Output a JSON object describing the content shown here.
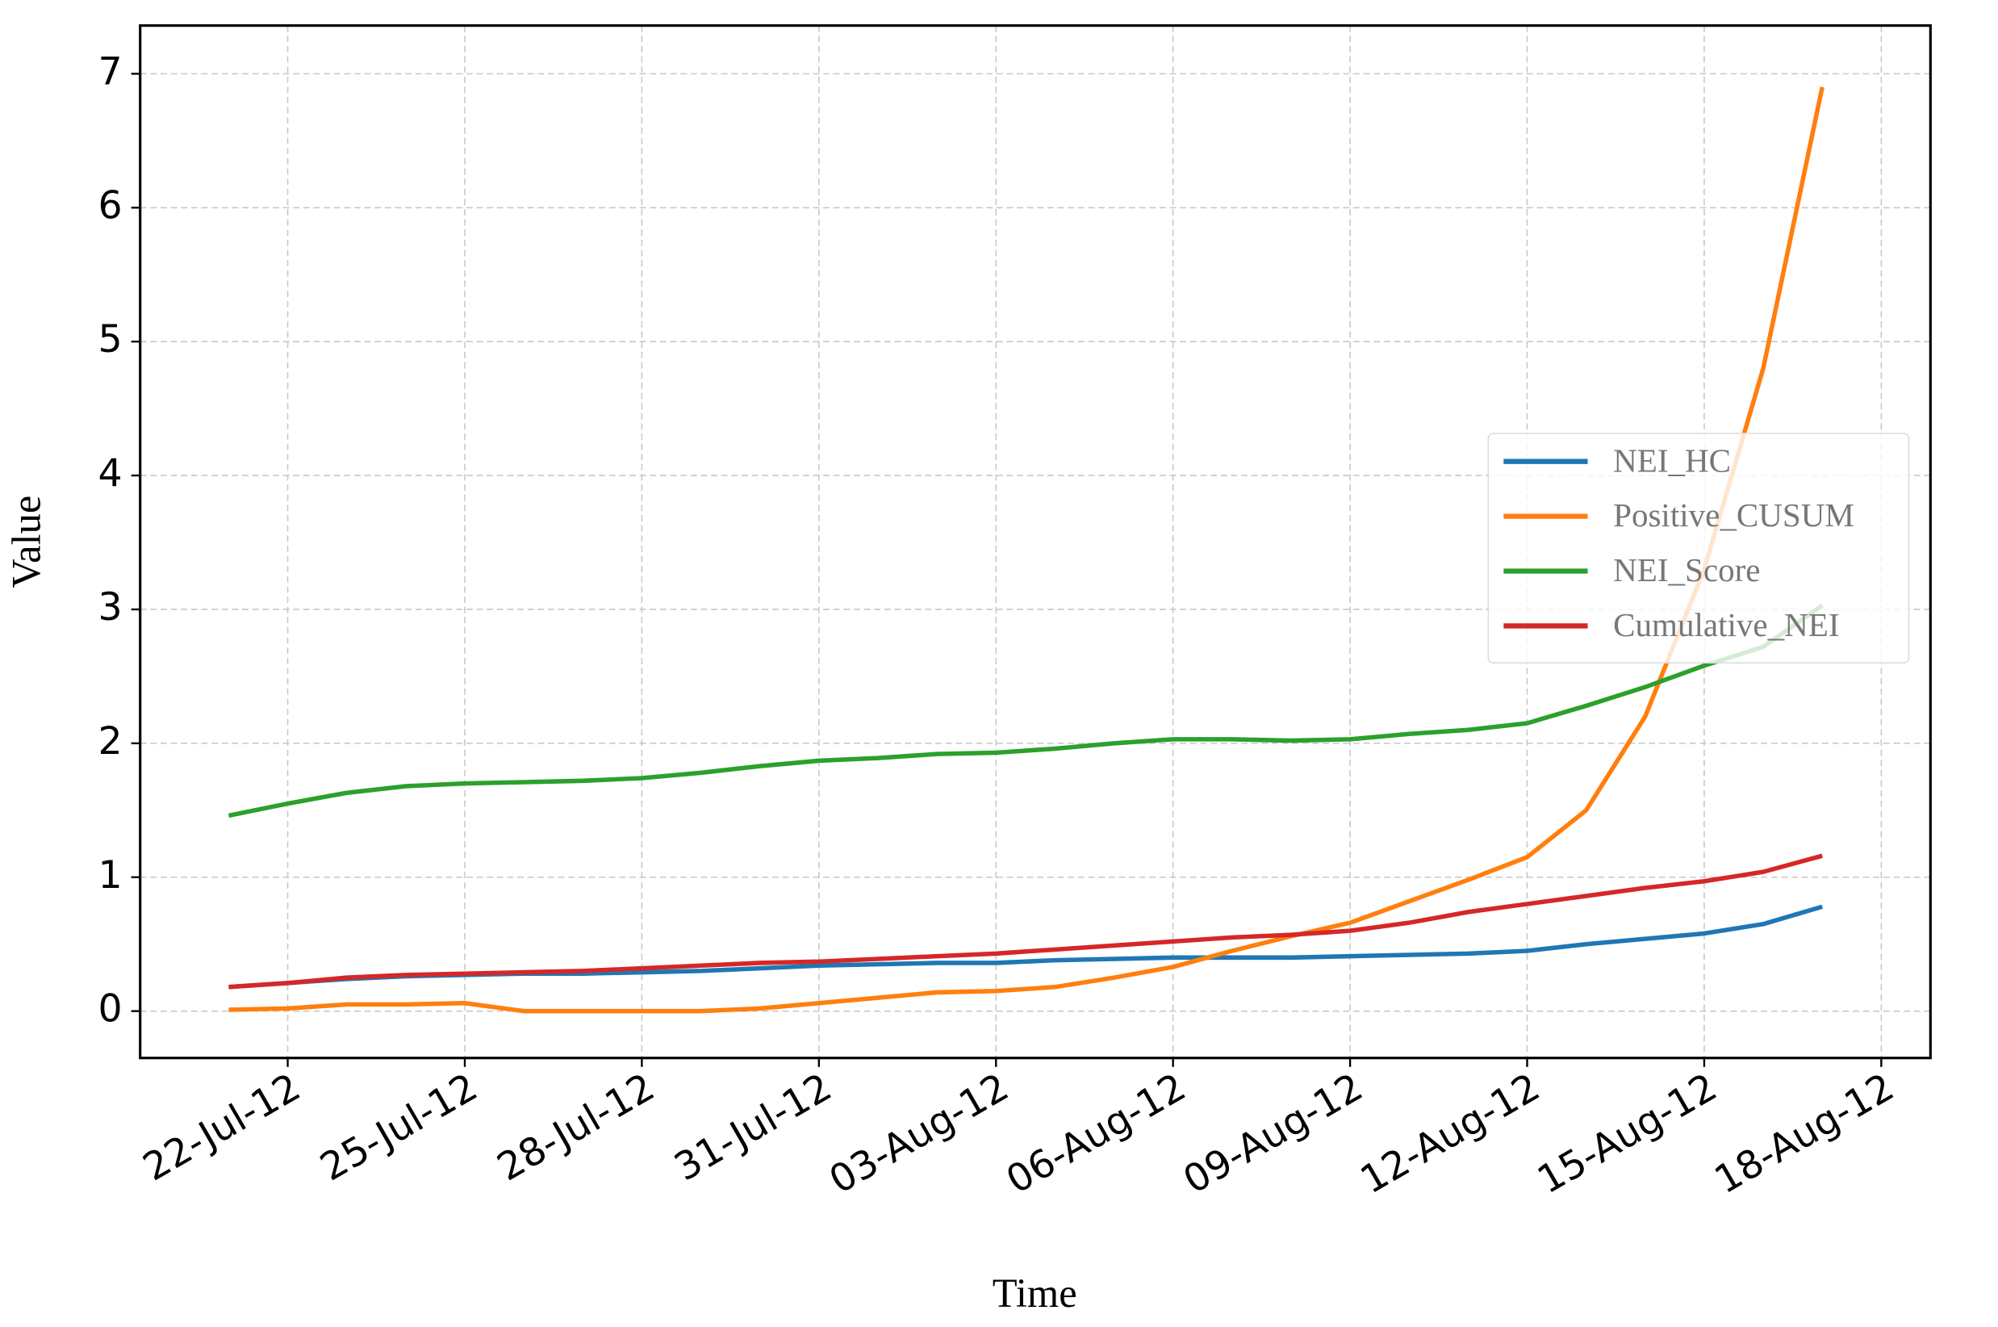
{
  "chart_data": {
    "type": "line",
    "x_label": "Time",
    "y_label": "Value",
    "x": [
      "2012-07-21",
      "2012-07-22",
      "2012-07-23",
      "2012-07-24",
      "2012-07-25",
      "2012-07-26",
      "2012-07-27",
      "2012-07-28",
      "2012-07-29",
      "2012-07-30",
      "2012-07-31",
      "2012-08-01",
      "2012-08-02",
      "2012-08-03",
      "2012-08-04",
      "2012-08-05",
      "2012-08-06",
      "2012-08-07",
      "2012-08-08",
      "2012-08-09",
      "2012-08-10",
      "2012-08-11",
      "2012-08-12",
      "2012-08-13",
      "2012-08-14",
      "2012-08-15",
      "2012-08-16",
      "2012-08-17"
    ],
    "series": [
      {
        "name": "NEI_HC",
        "color": "#1f77b4",
        "values": [
          0.18,
          0.21,
          0.24,
          0.26,
          0.27,
          0.28,
          0.28,
          0.29,
          0.3,
          0.32,
          0.34,
          0.35,
          0.36,
          0.36,
          0.38,
          0.39,
          0.4,
          0.4,
          0.4,
          0.41,
          0.42,
          0.43,
          0.45,
          0.5,
          0.54,
          0.58,
          0.65,
          0.78
        ]
      },
      {
        "name": "Positive_CUSUM",
        "color": "#ff7f0e",
        "values": [
          0.01,
          0.02,
          0.05,
          0.05,
          0.06,
          0.0,
          0,
          0,
          0,
          0.02,
          0.06,
          0.1,
          0.14,
          0.15,
          0.18,
          0.25,
          0.33,
          0.45,
          0.56,
          0.66,
          0.82,
          0.98,
          1.15,
          1.5,
          2.2,
          3.3,
          4.8,
          6.9
        ]
      },
      {
        "name": "NEI_Score",
        "color": "#2ca02c",
        "values": [
          1.46,
          1.55,
          1.63,
          1.68,
          1.7,
          1.71,
          1.72,
          1.74,
          1.78,
          1.83,
          1.87,
          1.89,
          1.92,
          1.93,
          1.96,
          2.0,
          2.03,
          2.03,
          2.02,
          2.03,
          2.07,
          2.1,
          2.15,
          2.28,
          2.42,
          2.58,
          2.72,
          3.03
        ]
      },
      {
        "name": "Cumulative_NEI",
        "color": "#d62728",
        "values": [
          0.18,
          0.21,
          0.25,
          0.27,
          0.28,
          0.29,
          0.3,
          0.32,
          0.34,
          0.36,
          0.37,
          0.39,
          0.41,
          0.43,
          0.46,
          0.49,
          0.52,
          0.55,
          0.57,
          0.6,
          0.66,
          0.74,
          0.8,
          0.86,
          0.92,
          0.97,
          1.04,
          1.16
        ]
      }
    ],
    "xlim": [
      "2012-07-19T12:00",
      "2012-08-18T20:00"
    ],
    "xticks": [
      {
        "value": "2012-07-22",
        "label": "22-Jul-12"
      },
      {
        "value": "2012-07-25",
        "label": "25-Jul-12"
      },
      {
        "value": "2012-07-28",
        "label": "28-Jul-12"
      },
      {
        "value": "2012-07-31",
        "label": "31-Jul-12"
      },
      {
        "value": "2012-08-03",
        "label": "03-Aug-12"
      },
      {
        "value": "2012-08-06",
        "label": "06-Aug-12"
      },
      {
        "value": "2012-08-09",
        "label": "09-Aug-12"
      },
      {
        "value": "2012-08-12",
        "label": "12-Aug-12"
      },
      {
        "value": "2012-08-15",
        "label": "15-Aug-12"
      },
      {
        "value": "2012-08-18",
        "label": "18-Aug-12"
      }
    ],
    "ylim": [
      -0.35,
      7.36
    ],
    "yticks": [
      0,
      1,
      2,
      3,
      4,
      5,
      6,
      7
    ],
    "grid": true,
    "legend": "center right"
  }
}
